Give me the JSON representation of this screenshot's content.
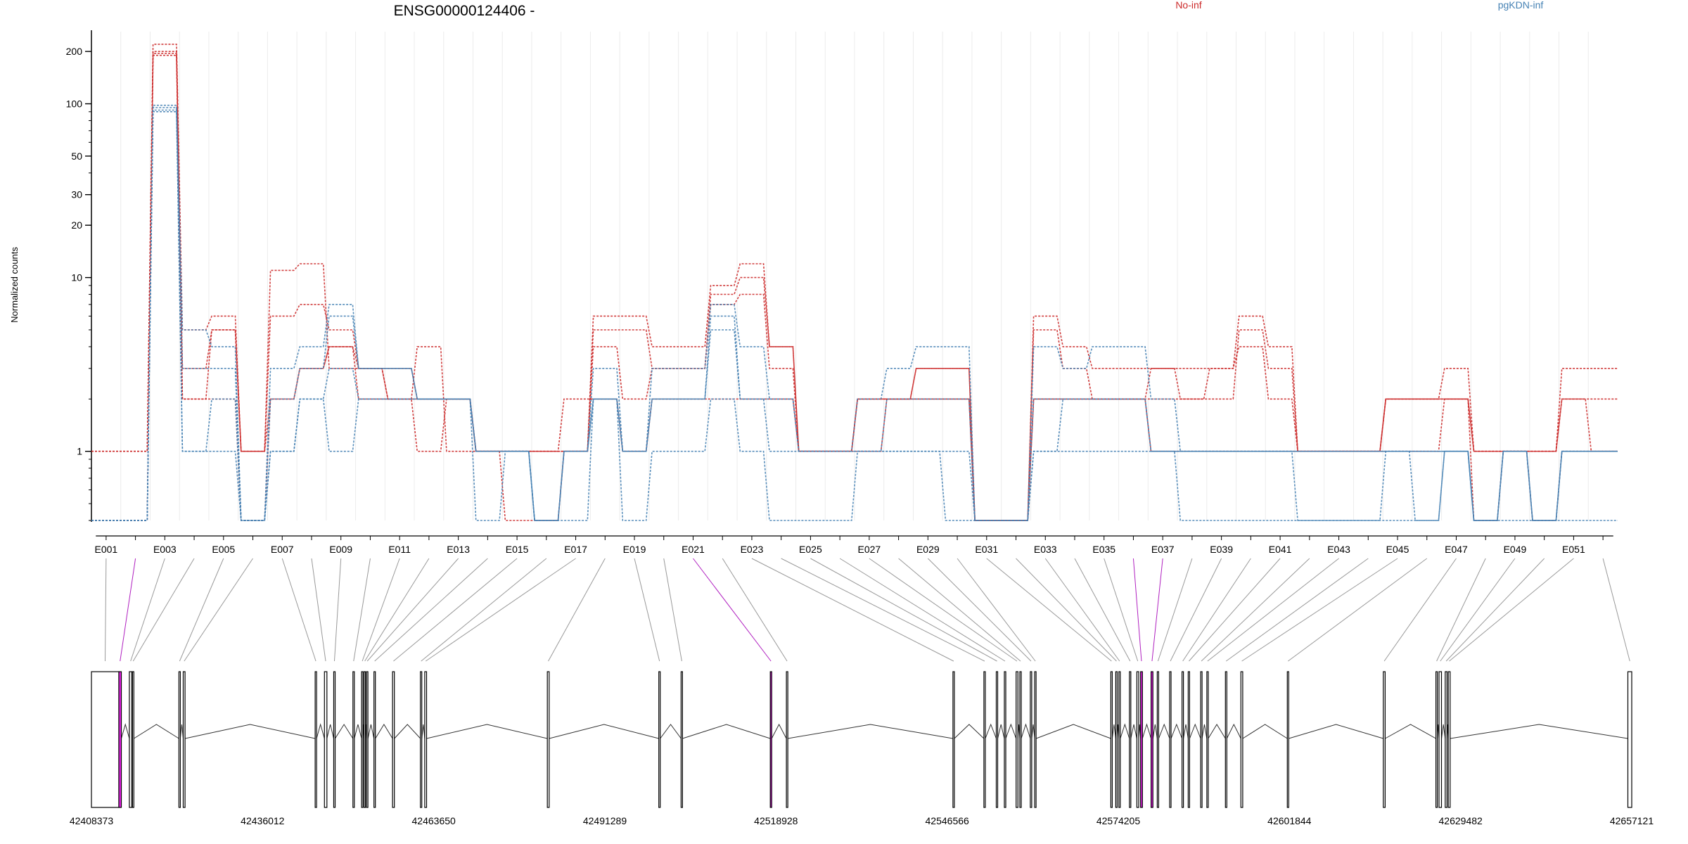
{
  "chart_data": {
    "type": "line",
    "title": "ENSG00000124406 -",
    "ylabel": "Normalized counts",
    "yscale": "log",
    "ylim": [
      0.4,
      260
    ],
    "yticks": [
      1,
      10,
      20,
      30,
      50,
      100,
      200
    ],
    "legend": {
      "placement": "top-right",
      "entries": [
        {
          "name": "No-inf",
          "color": "#cc2a2a"
        },
        {
          "name": "pgKDN-inf",
          "color": "#4682b4"
        }
      ]
    },
    "exons": [
      "E001",
      "E002",
      "E003",
      "E004",
      "E005",
      "E006",
      "E007",
      "E008",
      "E009",
      "E010",
      "E011",
      "E012",
      "E013",
      "E014",
      "E015",
      "E016",
      "E017",
      "E018",
      "E019",
      "E020",
      "E021",
      "E022",
      "E023",
      "E024",
      "E025",
      "E026",
      "E027",
      "E028",
      "E029",
      "E030",
      "E031",
      "E032",
      "E033",
      "E034",
      "E035",
      "E036",
      "E037",
      "E038",
      "E039",
      "E040",
      "E041",
      "E042",
      "E043",
      "E044",
      "E045",
      "E046",
      "E047",
      "E048",
      "E049",
      "E050",
      "E051",
      "E052"
    ],
    "exon_tick_labels": [
      "E001",
      "E003",
      "E005",
      "E007",
      "E009",
      "E011",
      "E013",
      "E015",
      "E017",
      "E019",
      "E021",
      "E023",
      "E025",
      "E027",
      "E029",
      "E031",
      "E033",
      "E035",
      "E037",
      "E039",
      "E041",
      "E043",
      "E045",
      "E047",
      "E049",
      "E051"
    ],
    "series": [
      {
        "group": "No-inf",
        "values": [
          1,
          1,
          220,
          5,
          6,
          1,
          11,
          12,
          3,
          3,
          2,
          4,
          1,
          1,
          1,
          1,
          1,
          6,
          6,
          4,
          4,
          9,
          12,
          4,
          1,
          1,
          2,
          2,
          3,
          3,
          0.4,
          0.4,
          6,
          4,
          3,
          3,
          3,
          3,
          3,
          6,
          4,
          1,
          1,
          1,
          2,
          2,
          3,
          1,
          1,
          1,
          3,
          3
        ]
      },
      {
        "group": "No-inf",
        "values": [
          1,
          1,
          200,
          3,
          5,
          1,
          6,
          7,
          5,
          3,
          3,
          2,
          2,
          1,
          1,
          1,
          1,
          5,
          5,
          3,
          3,
          8,
          10,
          4,
          1,
          1,
          2,
          2,
          3,
          3,
          0.4,
          0.4,
          5,
          3,
          2,
          2,
          3,
          2,
          2,
          5,
          3,
          1,
          1,
          1,
          2,
          2,
          2,
          1,
          1,
          1,
          2,
          2
        ]
      },
      {
        "group": "No-inf",
        "values": [
          0.4,
          0.4,
          190,
          2,
          5,
          1,
          2,
          3,
          4,
          3,
          2,
          2,
          2,
          1,
          0.4,
          0.4,
          1,
          4,
          2,
          3,
          3,
          7,
          8,
          3,
          1,
          1,
          2,
          2,
          2,
          2,
          0.4,
          0.4,
          2,
          2,
          2,
          2,
          2,
          2,
          3,
          4,
          2,
          1,
          1,
          1,
          2,
          2,
          2,
          1,
          1,
          1,
          2,
          1
        ]
      },
      {
        "group": "No-inf",
        "values": [
          0.4,
          0.4,
          195,
          2,
          2,
          0.4,
          2,
          3,
          4,
          2,
          2,
          1,
          2,
          1,
          1,
          1,
          2,
          2,
          1,
          2,
          2,
          2,
          2,
          2,
          1,
          1,
          1,
          2,
          2,
          2,
          0.4,
          0.4,
          2,
          2,
          2,
          2,
          1,
          1,
          1,
          1,
          1,
          1,
          1,
          1,
          1,
          1,
          2,
          0.4,
          1,
          0.4,
          1,
          1
        ]
      },
      {
        "group": "pgKDN-inf",
        "values": [
          0.4,
          0.4,
          98,
          5,
          4,
          0.4,
          3,
          4,
          7,
          3,
          3,
          2,
          2,
          1,
          1,
          0.4,
          1,
          3,
          1,
          3,
          3,
          7,
          4,
          2,
          1,
          1,
          2,
          3,
          4,
          4,
          0.4,
          0.4,
          4,
          3,
          4,
          4,
          2,
          1,
          1,
          1,
          1,
          1,
          1,
          1,
          1,
          1,
          1,
          0.4,
          1,
          0.4,
          1,
          1
        ]
      },
      {
        "group": "pgKDN-inf",
        "values": [
          0.4,
          0.4,
          95,
          3,
          3,
          0.4,
          2,
          3,
          6,
          3,
          3,
          2,
          2,
          1,
          1,
          0.4,
          1,
          2,
          1,
          2,
          2,
          6,
          2,
          2,
          1,
          1,
          1,
          2,
          2,
          2,
          0.4,
          0.4,
          2,
          2,
          2,
          2,
          1,
          1,
          1,
          1,
          1,
          1,
          1,
          1,
          1,
          1,
          1,
          0.4,
          1,
          0.4,
          1,
          1
        ]
      },
      {
        "group": "pgKDN-inf",
        "values": [
          0.4,
          0.4,
          92,
          1,
          2,
          0.4,
          1,
          2,
          3,
          2,
          2,
          2,
          2,
          1,
          1,
          0.4,
          1,
          2,
          1,
          2,
          2,
          5,
          2,
          1,
          1,
          1,
          1,
          1,
          1,
          1,
          0.4,
          0.4,
          1,
          1,
          1,
          1,
          1,
          1,
          1,
          1,
          1,
          0.4,
          0.4,
          0.4,
          1,
          0.4,
          1,
          0.4,
          1,
          0.4,
          1,
          1
        ]
      },
      {
        "group": "pgKDN-inf",
        "values": [
          0.4,
          0.4,
          90,
          1,
          1,
          0.4,
          1,
          2,
          1,
          2,
          2,
          2,
          2,
          0.4,
          1,
          0.4,
          0.4,
          2,
          0.4,
          1,
          1,
          2,
          1,
          0.4,
          0.4,
          0.4,
          1,
          1,
          1,
          0.4,
          0.4,
          0.4,
          1,
          2,
          2,
          2,
          1,
          0.4,
          0.4,
          0.4,
          0.4,
          0.4,
          0.4,
          0.4,
          0.4,
          0.4,
          1,
          0.4,
          0.4,
          0.4,
          0.4,
          0.4
        ]
      }
    ],
    "gene_model": {
      "coord_range": [
        42408373,
        42657121
      ],
      "coord_tick_labels": [
        "42408373",
        "42436012",
        "42463650",
        "42491289",
        "42518928",
        "42546566",
        "42574205",
        "42601844",
        "42629482",
        "42657121"
      ],
      "highlight_color": "#ee22ee",
      "highlighted_exons": [
        "E002",
        "E021",
        "E036",
        "E037"
      ],
      "exon_coords": [
        [
          42408373,
          42412800
        ],
        [
          42412800,
          42413200
        ],
        [
          42414500,
          42414900
        ],
        [
          42415000,
          42415200
        ],
        [
          42422500,
          42422700
        ],
        [
          42423200,
          42423500
        ],
        [
          42444500,
          42444700
        ],
        [
          42446000,
          42446400
        ],
        [
          42447500,
          42447700
        ],
        [
          42450600,
          42450800
        ],
        [
          42452000,
          42452200
        ],
        [
          42452400,
          42452600
        ],
        [
          42452800,
          42453000
        ],
        [
          42454000,
          42454200
        ],
        [
          42457000,
          42457300
        ],
        [
          42461500,
          42461700
        ],
        [
          42462200,
          42462500
        ],
        [
          42482000,
          42482300
        ],
        [
          42500000,
          42500200
        ],
        [
          42503600,
          42503800
        ],
        [
          42518000,
          42518200
        ],
        [
          42520600,
          42520800
        ],
        [
          42547500,
          42547700
        ],
        [
          42552500,
          42552700
        ],
        [
          42554500,
          42554700
        ],
        [
          42555800,
          42556000
        ],
        [
          42557700,
          42558000
        ],
        [
          42558300,
          42558500
        ],
        [
          42560000,
          42560200
        ],
        [
          42560700,
          42560900
        ],
        [
          42573000,
          42573200
        ],
        [
          42573800,
          42574000
        ],
        [
          42574300,
          42574500
        ],
        [
          42576000,
          42576200
        ],
        [
          42577200,
          42577500
        ],
        [
          42577800,
          42578100
        ],
        [
          42579500,
          42579800
        ],
        [
          42580500,
          42580700
        ],
        [
          42582500,
          42582700
        ],
        [
          42584500,
          42584700
        ],
        [
          42585500,
          42585700
        ],
        [
          42587500,
          42587700
        ],
        [
          42588500,
          42588700
        ],
        [
          42591500,
          42591700
        ],
        [
          42594000,
          42594300
        ],
        [
          42601500,
          42601700
        ],
        [
          42617000,
          42617300
        ],
        [
          42625500,
          42625700
        ],
        [
          42626000,
          42626400
        ],
        [
          42627000,
          42627300
        ],
        [
          42627500,
          42627800
        ],
        [
          42656500,
          42657121
        ]
      ]
    }
  }
}
